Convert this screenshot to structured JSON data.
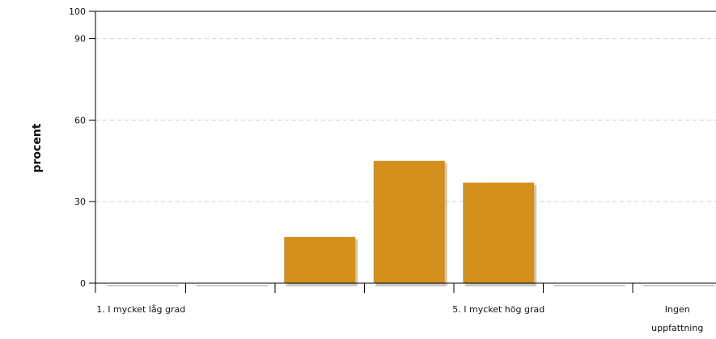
{
  "chart_data": {
    "type": "bar",
    "title": "",
    "xlabel": "",
    "ylabel": "procent",
    "ylim": [
      0,
      100
    ],
    "yticks": [
      0,
      30,
      60,
      90,
      100
    ],
    "grid": true,
    "categories": [
      "1. I mycket låg grad",
      "",
      "",
      "",
      "5. I mycket hög grad",
      "",
      "Ingen uppfattning"
    ],
    "values": [
      0,
      0,
      17,
      45,
      37,
      0,
      0
    ],
    "colors": {
      "bar": "#d4901c",
      "shadow": "#c8c8c8",
      "axis": "#000000",
      "grid": "#d0d0d0"
    }
  }
}
